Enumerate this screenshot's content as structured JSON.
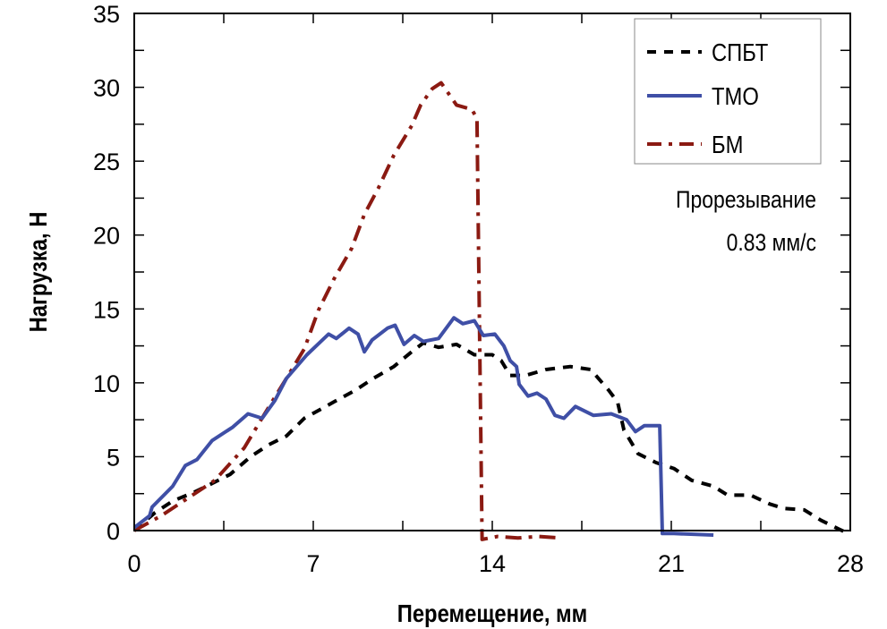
{
  "chart_data": {
    "type": "line",
    "title": "",
    "xlabel": "Перемещение, мм",
    "ylabel": "Нагрузка, Н",
    "xlim": [
      0,
      28
    ],
    "ylim": [
      0,
      35
    ],
    "xticks": [
      0,
      7,
      14,
      21,
      28
    ],
    "yticks": [
      0,
      5,
      10,
      15,
      20,
      25,
      30,
      35
    ],
    "xtick_labels": [
      "0",
      "7",
      "14",
      "21",
      "28"
    ],
    "ytick_labels": [
      "0",
      "5",
      "10",
      "15",
      "20",
      "25",
      "30",
      "35"
    ],
    "grid": false,
    "legend_position": "top-right",
    "annotation": [
      "Прорезывание",
      "0.83 мм/с"
    ],
    "series": [
      {
        "name": "СПБТ",
        "color": "#000000",
        "style": "dashed",
        "x": [
          0,
          0.8,
          1.5,
          2.35,
          3.05,
          3.75,
          4.55,
          5.25,
          5.95,
          6.65,
          7.8,
          8.65,
          9.35,
          10.15,
          10.85,
          11.3,
          11.9,
          12.6,
          13.3,
          14.0,
          14.35,
          14.7,
          15.3,
          16.1,
          17.05,
          17.85,
          18.55,
          18.9,
          19.15,
          19.7,
          20.4,
          21.1,
          21.8,
          22.65,
          23.2,
          24.1,
          24.85,
          25.4,
          26.2,
          26.85,
          27.55,
          27.8
        ],
        "y": [
          0,
          1.2,
          2.0,
          2.6,
          3.2,
          3.8,
          5.0,
          5.8,
          6.4,
          7.6,
          8.7,
          9.5,
          10.3,
          11.1,
          12.1,
          12.7,
          12.4,
          12.6,
          11.9,
          11.9,
          11.5,
          10.5,
          10.5,
          10.9,
          11.1,
          10.9,
          9.5,
          8.7,
          6.8,
          5.2,
          4.6,
          4.2,
          3.4,
          3.0,
          2.4,
          2.4,
          1.8,
          1.5,
          1.4,
          0.7,
          0.1,
          -0.1
        ]
      },
      {
        "name": "ТМО",
        "color": "#3f4fa6",
        "style": "solid",
        "x": [
          0,
          0.6,
          0.7,
          1.5,
          2.0,
          2.45,
          3.05,
          3.85,
          4.45,
          5.0,
          5.5,
          5.95,
          6.75,
          7.6,
          7.9,
          8.4,
          8.75,
          9.0,
          9.3,
          9.9,
          10.2,
          10.55,
          10.95,
          11.3,
          11.9,
          12.5,
          12.85,
          13.3,
          13.65,
          14.1,
          14.45,
          14.7,
          14.95,
          15.05,
          15.4,
          15.75,
          16.1,
          16.45,
          16.8,
          17.25,
          17.95,
          18.65,
          19.25,
          19.6,
          19.95,
          20.55,
          20.65,
          21.1,
          22.65
        ],
        "y": [
          0.2,
          1.0,
          1.6,
          3.0,
          4.4,
          4.8,
          6.1,
          7.0,
          7.9,
          7.6,
          8.8,
          10.3,
          11.9,
          13.3,
          13.0,
          13.7,
          13.3,
          12.1,
          12.9,
          13.7,
          13.9,
          12.6,
          13.2,
          12.8,
          13.0,
          14.4,
          14.0,
          14.2,
          13.2,
          13.3,
          12.5,
          11.5,
          11.1,
          9.9,
          9.1,
          9.3,
          8.9,
          7.8,
          7.6,
          8.4,
          7.8,
          7.9,
          7.5,
          6.7,
          7.1,
          7.1,
          -0.2,
          -0.2,
          -0.3
        ]
      },
      {
        "name": "БМ",
        "color": "#8b1a12",
        "style": "dashdot",
        "x": [
          0,
          1.05,
          3.15,
          4.3,
          5.1,
          5.95,
          6.65,
          7.2,
          7.8,
          8.5,
          9.0,
          9.55,
          10.15,
          10.85,
          11.2,
          11.65,
          12.0,
          12.6,
          13.2,
          13.4,
          13.6,
          14.2,
          15.0,
          15.8,
          16.7
        ],
        "y": [
          0,
          1.0,
          3.4,
          5.6,
          7.9,
          10.3,
          12.3,
          14.9,
          17.0,
          19.1,
          21.4,
          23.2,
          25.4,
          27.4,
          28.8,
          29.9,
          30.3,
          28.8,
          28.5,
          27.9,
          -0.6,
          -0.4,
          -0.5,
          -0.4,
          -0.5
        ]
      }
    ]
  }
}
